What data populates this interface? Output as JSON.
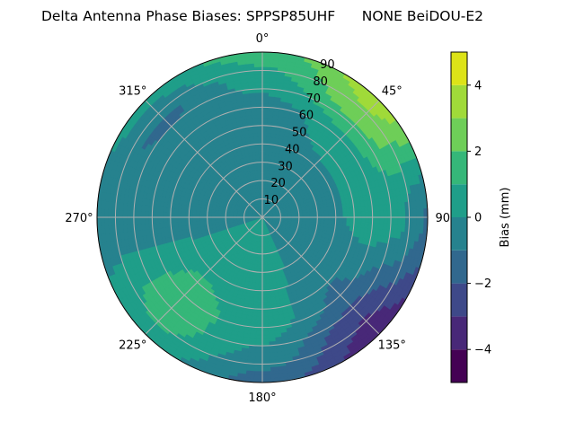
{
  "chart_data": {
    "type": "heatmap",
    "subtype": "polar filled contour",
    "title": "Delta Antenna Phase Biases: SPPSP85UHF      NONE BeiDOU-E2",
    "angular_axis": {
      "zero_location": "top",
      "direction": "clockwise",
      "tick_labels": [
        "0°",
        "45°",
        "90°",
        "135°",
        "180°",
        "225°",
        "270°",
        "315°"
      ]
    },
    "radial_axis": {
      "range": [
        0,
        90
      ],
      "tick_labels": [
        "10",
        "20",
        "30",
        "40",
        "50",
        "60",
        "70",
        "80",
        "90"
      ]
    },
    "grid": true,
    "colorbar": {
      "label": "Bias (mm)",
      "range": [
        -5,
        5
      ],
      "levels": [
        -5,
        -4,
        -3,
        -2,
        -1,
        0,
        1,
        2,
        3,
        4,
        5
      ],
      "tick_labels": [
        "−4",
        "−2",
        "0",
        "2",
        "4"
      ],
      "colormap": "viridis",
      "colors": [
        "#440154",
        "#482878",
        "#3e4989",
        "#31688e",
        "#26828e",
        "#1f9e89",
        "#35b779",
        "#6ece58",
        "#a0da39",
        "#dde318"
      ],
      "placement": "right"
    },
    "grid_azimuth_deg": [
      0,
      45,
      90,
      135,
      180,
      225,
      270,
      315
    ],
    "grid_zenith_deg": [
      0,
      30,
      60,
      75,
      90
    ],
    "values_mm": [
      [
        0,
        -0.5,
        -0.5,
        0.5,
        1.5
      ],
      [
        0,
        -0.5,
        0.5,
        2.5,
        3.6
      ],
      [
        0,
        -0.5,
        0.5,
        0.3,
        -1.2
      ],
      [
        0,
        -0.5,
        -1.2,
        -2.8,
        -3.6
      ],
      [
        0,
        0.5,
        0.5,
        -0.3,
        -1.5
      ],
      [
        0,
        0.5,
        1.5,
        1.5,
        0.5
      ],
      [
        0,
        -0.3,
        -0.5,
        -0.5,
        -0.5
      ],
      [
        0,
        -0.5,
        -0.7,
        -1.2,
        0.5
      ]
    ]
  }
}
